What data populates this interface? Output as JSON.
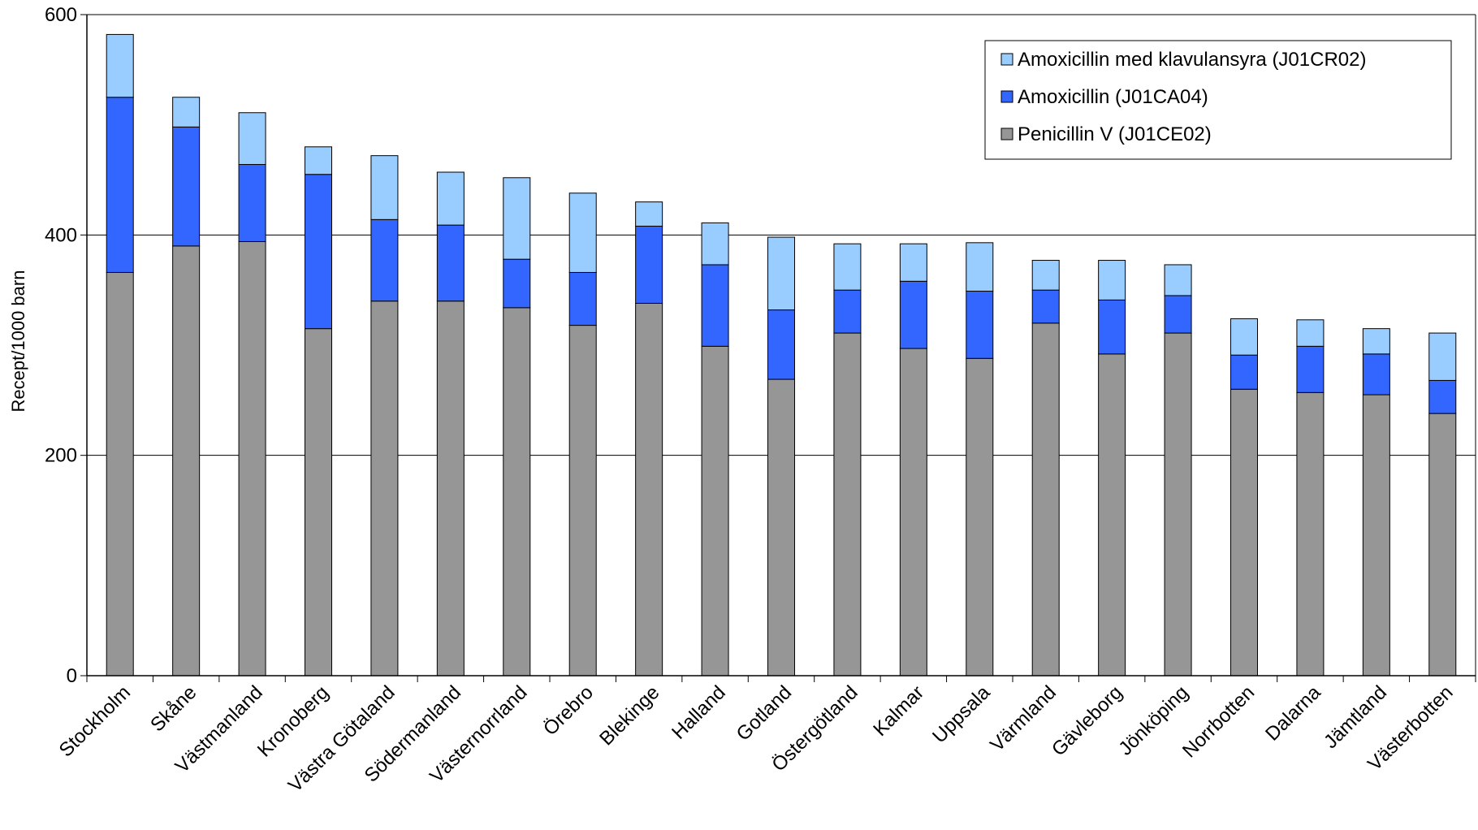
{
  "chart_data": {
    "type": "bar",
    "stacked": true,
    "ylabel": "Recept/1000 barn",
    "xlabel": "",
    "ylim": [
      0,
      600
    ],
    "yticks": [
      0,
      200,
      400,
      600
    ],
    "grid": true,
    "legend_position": "top-right",
    "categories": [
      "Stockholm",
      "Skåne",
      "Västmanland",
      "Kronoberg",
      "Västra Götaland",
      "Södermanland",
      "Västernorrland",
      "Örebro",
      "Blekinge",
      "Halland",
      "Gotland",
      "Östergötland",
      "Kalmar",
      "Uppsala",
      "Värmland",
      "Gävleborg",
      "Jönköping",
      "Norrbotten",
      "Dalarna",
      "Jämtland",
      "Västerbotten"
    ],
    "series": [
      {
        "name": "Penicillin V (J01CE02)",
        "color": "#969696",
        "values": [
          366,
          390,
          394,
          315,
          340,
          340,
          334,
          318,
          338,
          299,
          269,
          311,
          297,
          288,
          320,
          292,
          311,
          260,
          257,
          255,
          238
        ]
      },
      {
        "name": "Amoxicillin (J01CA04)",
        "color": "#3366ff",
        "values": [
          159,
          108,
          70,
          140,
          74,
          69,
          44,
          48,
          70,
          74,
          63,
          39,
          61,
          61,
          30,
          49,
          34,
          31,
          42,
          37,
          30
        ]
      },
      {
        "name": "Amoxicillin med klavulansyra (J01CR02)",
        "color": "#99ccff",
        "values": [
          57,
          27,
          47,
          25,
          58,
          48,
          74,
          72,
          22,
          38,
          66,
          42,
          34,
          44,
          27,
          36,
          28,
          33,
          24,
          23,
          43
        ]
      }
    ],
    "legend_order": [
      "Amoxicillin med klavulansyra (J01CR02)",
      "Amoxicillin (J01CA04)",
      "Penicillin V (J01CE02)"
    ]
  }
}
